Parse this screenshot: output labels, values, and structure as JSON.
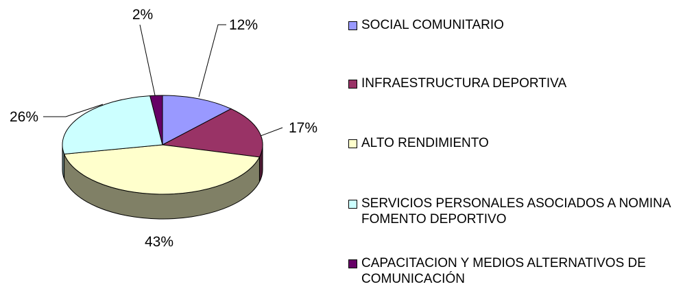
{
  "chart_data": {
    "type": "pie",
    "categories": [
      "SOCIAL COMUNITARIO",
      "INFRAESTRUCTURA DEPORTIVA",
      "ALTO RENDIMIENTO",
      "SERVICIOS PERSONALES ASOCIADOS A NOMINA FOMENTO DEPORTIVO",
      "CAPACITACION Y MEDIOS ALTERNATIVOS DE COMUNICACIÓN"
    ],
    "values": [
      12,
      17,
      43,
      26,
      2
    ],
    "value_labels": [
      "12%",
      "17%",
      "43%",
      "26%",
      "2%"
    ],
    "colors": [
      "#9999ff",
      "#993366",
      "#ffffcc",
      "#ccffff",
      "#660066"
    ],
    "legend": "right"
  }
}
